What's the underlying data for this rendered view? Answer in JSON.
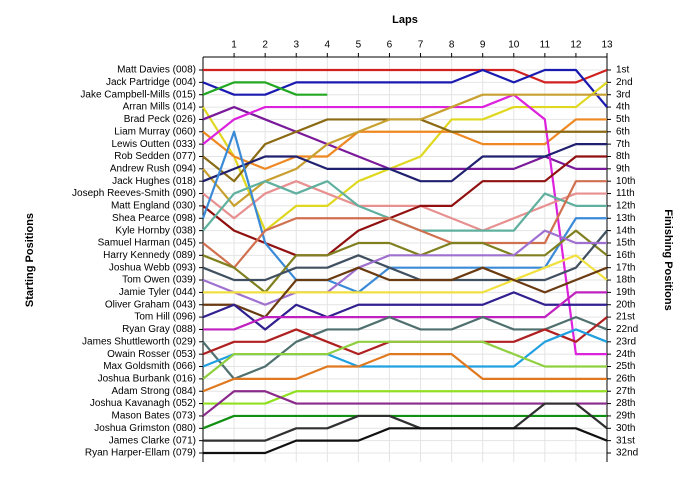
{
  "chart_data": {
    "type": "line",
    "xlabel": "Laps",
    "ylabel": "Starting Positions",
    "y2label": "Finishing Positions",
    "x": [
      0,
      1,
      2,
      3,
      4,
      5,
      6,
      7,
      8,
      9,
      10,
      11,
      12,
      13
    ],
    "xlim": [
      0,
      13
    ],
    "xticks": [
      1,
      2,
      3,
      4,
      5,
      6,
      7,
      8,
      9,
      10,
      11,
      12,
      13
    ],
    "ylim": [
      1,
      32
    ],
    "inverted": true,
    "grid": true,
    "y2ticks": [
      {
        "value": 1,
        "label": "1st"
      },
      {
        "value": 2,
        "label": "2nd"
      },
      {
        "value": 3,
        "label": "3rd"
      },
      {
        "value": 4,
        "label": "4th"
      },
      {
        "value": 5,
        "label": "5th"
      },
      {
        "value": 6,
        "label": "6th"
      },
      {
        "value": 7,
        "label": "7th"
      },
      {
        "value": 8,
        "label": "8th"
      },
      {
        "value": 9,
        "label": "9th"
      },
      {
        "value": 10,
        "label": "10th"
      },
      {
        "value": 11,
        "label": "11th"
      },
      {
        "value": 12,
        "label": "12th"
      },
      {
        "value": 13,
        "label": "13th"
      },
      {
        "value": 14,
        "label": "14th"
      },
      {
        "value": 15,
        "label": "15th"
      },
      {
        "value": 16,
        "label": "16th"
      },
      {
        "value": 17,
        "label": "17th"
      },
      {
        "value": 18,
        "label": "18th"
      },
      {
        "value": 19,
        "label": "19th"
      },
      {
        "value": 20,
        "label": "20th"
      },
      {
        "value": 21,
        "label": "21st"
      },
      {
        "value": 22,
        "label": "22nd"
      },
      {
        "value": 23,
        "label": "23rd"
      },
      {
        "value": 24,
        "label": "24th"
      },
      {
        "value": 25,
        "label": "25th"
      },
      {
        "value": 26,
        "label": "26th"
      },
      {
        "value": 27,
        "label": "27th"
      },
      {
        "value": 28,
        "label": "28th"
      },
      {
        "value": 29,
        "label": "29th"
      },
      {
        "value": 30,
        "label": "30th"
      },
      {
        "value": 31,
        "label": "31st"
      },
      {
        "value": 32,
        "label": "32nd"
      }
    ],
    "series": [
      {
        "name": "Matt Davies (008)",
        "color": "#d02020",
        "values": [
          1,
          1,
          1,
          1,
          1,
          1,
          1,
          1,
          1,
          1,
          1,
          2,
          2,
          1
        ]
      },
      {
        "name": "Jack Partridge (004)",
        "color": "#1a1ab0",
        "values": [
          2,
          3,
          3,
          2,
          2,
          2,
          2,
          2,
          2,
          1,
          2,
          1,
          1,
          4
        ]
      },
      {
        "name": "Jake Campbell-Mills (015)",
        "color": "#22a822",
        "values": [
          3,
          2,
          2,
          3,
          3,
          null,
          null,
          null,
          null,
          null,
          null,
          null,
          null,
          null
        ]
      },
      {
        "name": "Arran Mills (014)",
        "color": "#e0d820",
        "values": [
          4,
          8,
          14,
          12,
          12,
          10,
          9,
          8,
          5,
          5,
          4,
          4,
          4,
          2
        ]
      },
      {
        "name": "Brad Peck (026)",
        "color": "#7a1a9a",
        "values": [
          5,
          4,
          5,
          6,
          7,
          8,
          9,
          9,
          9,
          9,
          9,
          8,
          9,
          9
        ]
      },
      {
        "name": "Liam Murray (060)",
        "color": "#ee8822",
        "values": [
          6,
          8,
          9,
          8,
          8,
          6,
          6,
          6,
          6,
          7,
          7,
          7,
          5,
          5
        ]
      },
      {
        "name": "Lewis Outten (033)",
        "color": "#dd22dd",
        "values": [
          7,
          5,
          4,
          4,
          4,
          4,
          4,
          4,
          4,
          4,
          3,
          5,
          24,
          24
        ]
      },
      {
        "name": "Rob Sedden (077)",
        "color": "#8b6a14",
        "values": [
          8,
          10,
          7,
          6,
          5,
          5,
          5,
          5,
          6,
          6,
          6,
          6,
          6,
          6
        ]
      },
      {
        "name": "Andrew Rush (094)",
        "color": "#c8a030",
        "values": [
          9,
          12,
          10,
          9,
          7,
          6,
          5,
          5,
          4,
          3,
          3,
          3,
          3,
          3
        ]
      },
      {
        "name": "Jack Hughes (018)",
        "color": "#202070",
        "values": [
          10,
          9,
          8,
          8,
          9,
          9,
          9,
          10,
          10,
          8,
          8,
          8,
          7,
          7
        ]
      },
      {
        "name": "Joseph Reeves-Smith (090)",
        "color": "#e89090",
        "values": [
          11,
          13,
          11,
          10,
          11,
          12,
          12,
          12,
          13,
          14,
          13,
          12,
          11,
          11
        ]
      },
      {
        "name": "Matt England (030)",
        "color": "#901010",
        "values": [
          12,
          14,
          15,
          16,
          16,
          14,
          13,
          12,
          12,
          10,
          10,
          10,
          8,
          8
        ]
      },
      {
        "name": "Shea Pearce (098)",
        "color": "#3a8ad8",
        "values": [
          13,
          6,
          15,
          18,
          18,
          19,
          17,
          17,
          17,
          17,
          17,
          17,
          13,
          13
        ]
      },
      {
        "name": "Kyle Hornby (038)",
        "color": "#60b0a0",
        "values": [
          14,
          11,
          10,
          11,
          10,
          12,
          13,
          14,
          14,
          14,
          14,
          11,
          12,
          12
        ]
      },
      {
        "name": "Samuel Harman (045)",
        "color": "#d07050",
        "values": [
          15,
          17,
          14,
          13,
          13,
          13,
          13,
          14,
          15,
          15,
          15,
          15,
          10,
          10
        ]
      },
      {
        "name": "Harry Kennedy (089)",
        "color": "#808020",
        "values": [
          16,
          17,
          19,
          16,
          16,
          15,
          15,
          16,
          15,
          15,
          16,
          16,
          14,
          16
        ]
      },
      {
        "name": "Joshua Webb (093)",
        "color": "#405060",
        "values": [
          17,
          18,
          18,
          17,
          17,
          16,
          17,
          18,
          18,
          18,
          18,
          18,
          17,
          14
        ]
      },
      {
        "name": "Tom Owen (039)",
        "color": "#a070d0",
        "values": [
          18,
          19,
          20,
          19,
          19,
          17,
          16,
          16,
          16,
          16,
          16,
          14,
          15,
          15
        ]
      },
      {
        "name": "Jamie Tyler (044)",
        "color": "#f0e040",
        "values": [
          19,
          19,
          19,
          19,
          19,
          19,
          19,
          19,
          19,
          19,
          18,
          17,
          16,
          18
        ]
      },
      {
        "name": "Oliver Graham (043)",
        "color": "#6a3a10",
        "values": [
          20,
          20,
          21,
          18,
          18,
          17,
          18,
          18,
          18,
          17,
          18,
          19,
          18,
          17
        ]
      },
      {
        "name": "Tom Hill (096)",
        "color": "#302090",
        "values": [
          21,
          20,
          22,
          20,
          21,
          20,
          20,
          20,
          20,
          20,
          19,
          20,
          20,
          20
        ]
      },
      {
        "name": "Ryan Gray (088)",
        "color": "#c020c0",
        "values": [
          22,
          22,
          21,
          21,
          21,
          21,
          21,
          21,
          21,
          21,
          21,
          21,
          19,
          19
        ]
      },
      {
        "name": "James Shuttleworth (029)",
        "color": "#507070",
        "values": [
          23,
          26,
          25,
          23,
          22,
          22,
          21,
          22,
          22,
          21,
          22,
          22,
          21,
          22
        ]
      },
      {
        "name": "Owain Rosser (053)",
        "color": "#b02020",
        "values": [
          24,
          23,
          23,
          22,
          23,
          24,
          23,
          23,
          23,
          23,
          23,
          22,
          23,
          21
        ]
      },
      {
        "name": "Max Goldsmith (066)",
        "color": "#20a0e0",
        "values": [
          25,
          24,
          24,
          24,
          24,
          25,
          25,
          25,
          25,
          25,
          25,
          23,
          22,
          23
        ]
      },
      {
        "name": "Joshua Burbank (016)",
        "color": "#90d040",
        "values": [
          26,
          24,
          24,
          24,
          24,
          23,
          23,
          23,
          23,
          23,
          24,
          25,
          25,
          25
        ]
      },
      {
        "name": "Adam Strong (084)",
        "color": "#e07820",
        "values": [
          27,
          26,
          26,
          26,
          25,
          25,
          24,
          24,
          24,
          26,
          26,
          26,
          26,
          26
        ]
      },
      {
        "name": "Joshua Kavanagh (052)",
        "color": "#90e020",
        "values": [
          28,
          28,
          28,
          27,
          27,
          27,
          27,
          27,
          27,
          27,
          27,
          27,
          27,
          27
        ]
      },
      {
        "name": "Mason Bates (073)",
        "color": "#8a2a8a",
        "values": [
          29,
          27,
          27,
          28,
          28,
          28,
          28,
          28,
          28,
          28,
          28,
          28,
          28,
          28
        ]
      },
      {
        "name": "Joshua Grimston (080)",
        "color": "#109010",
        "values": [
          30,
          29,
          29,
          29,
          29,
          29,
          29,
          29,
          29,
          29,
          29,
          29,
          29,
          29
        ]
      },
      {
        "name": "James Clarke (071)",
        "color": "#303030",
        "values": [
          31,
          31,
          31,
          30,
          30,
          29,
          29,
          30,
          30,
          30,
          30,
          28,
          28,
          30
        ]
      },
      {
        "name": "Ryan Harper-Ellam (079)",
        "color": "#101010",
        "values": [
          32,
          32,
          32,
          31,
          31,
          31,
          30,
          30,
          30,
          30,
          30,
          30,
          30,
          31
        ]
      }
    ]
  }
}
